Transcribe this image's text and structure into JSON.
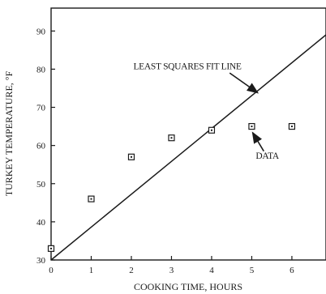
{
  "chart_data": {
    "type": "scatter",
    "title": "",
    "xlabel": "COOKING TIME, HOURS",
    "ylabel": "TURKEY TEMPERATURE, °F",
    "xlim": [
      0,
      6.85
    ],
    "ylim": [
      30,
      96
    ],
    "x_ticks": [
      0,
      1,
      2,
      3,
      4,
      5,
      6
    ],
    "y_ticks": [
      30,
      40,
      50,
      60,
      70,
      80,
      90
    ],
    "grid": false,
    "series": [
      {
        "kind": "points",
        "marker": "square",
        "x": [
          0,
          1,
          2,
          3,
          4,
          5,
          6
        ],
        "y": [
          33,
          46,
          57,
          62,
          64,
          65,
          65
        ]
      }
    ],
    "fit_line": {
      "x": [
        0,
        6.85
      ],
      "y": [
        30,
        89
      ]
    },
    "annotations": [
      {
        "id": "fit",
        "text": "LEAST SQUARES FIT LINE",
        "text_at": [
          2.05,
          80
        ],
        "arrow_from": [
          4.45,
          79
        ],
        "arrow_to": [
          5.15,
          73.8
        ]
      },
      {
        "id": "data",
        "text": "DATA",
        "text_at": [
          5.1,
          56.5
        ],
        "arrow_from": [
          5.3,
          58.5
        ],
        "arrow_to": [
          5.02,
          63.4
        ]
      }
    ],
    "colors": {
      "ink": "#1a1a1a"
    }
  }
}
